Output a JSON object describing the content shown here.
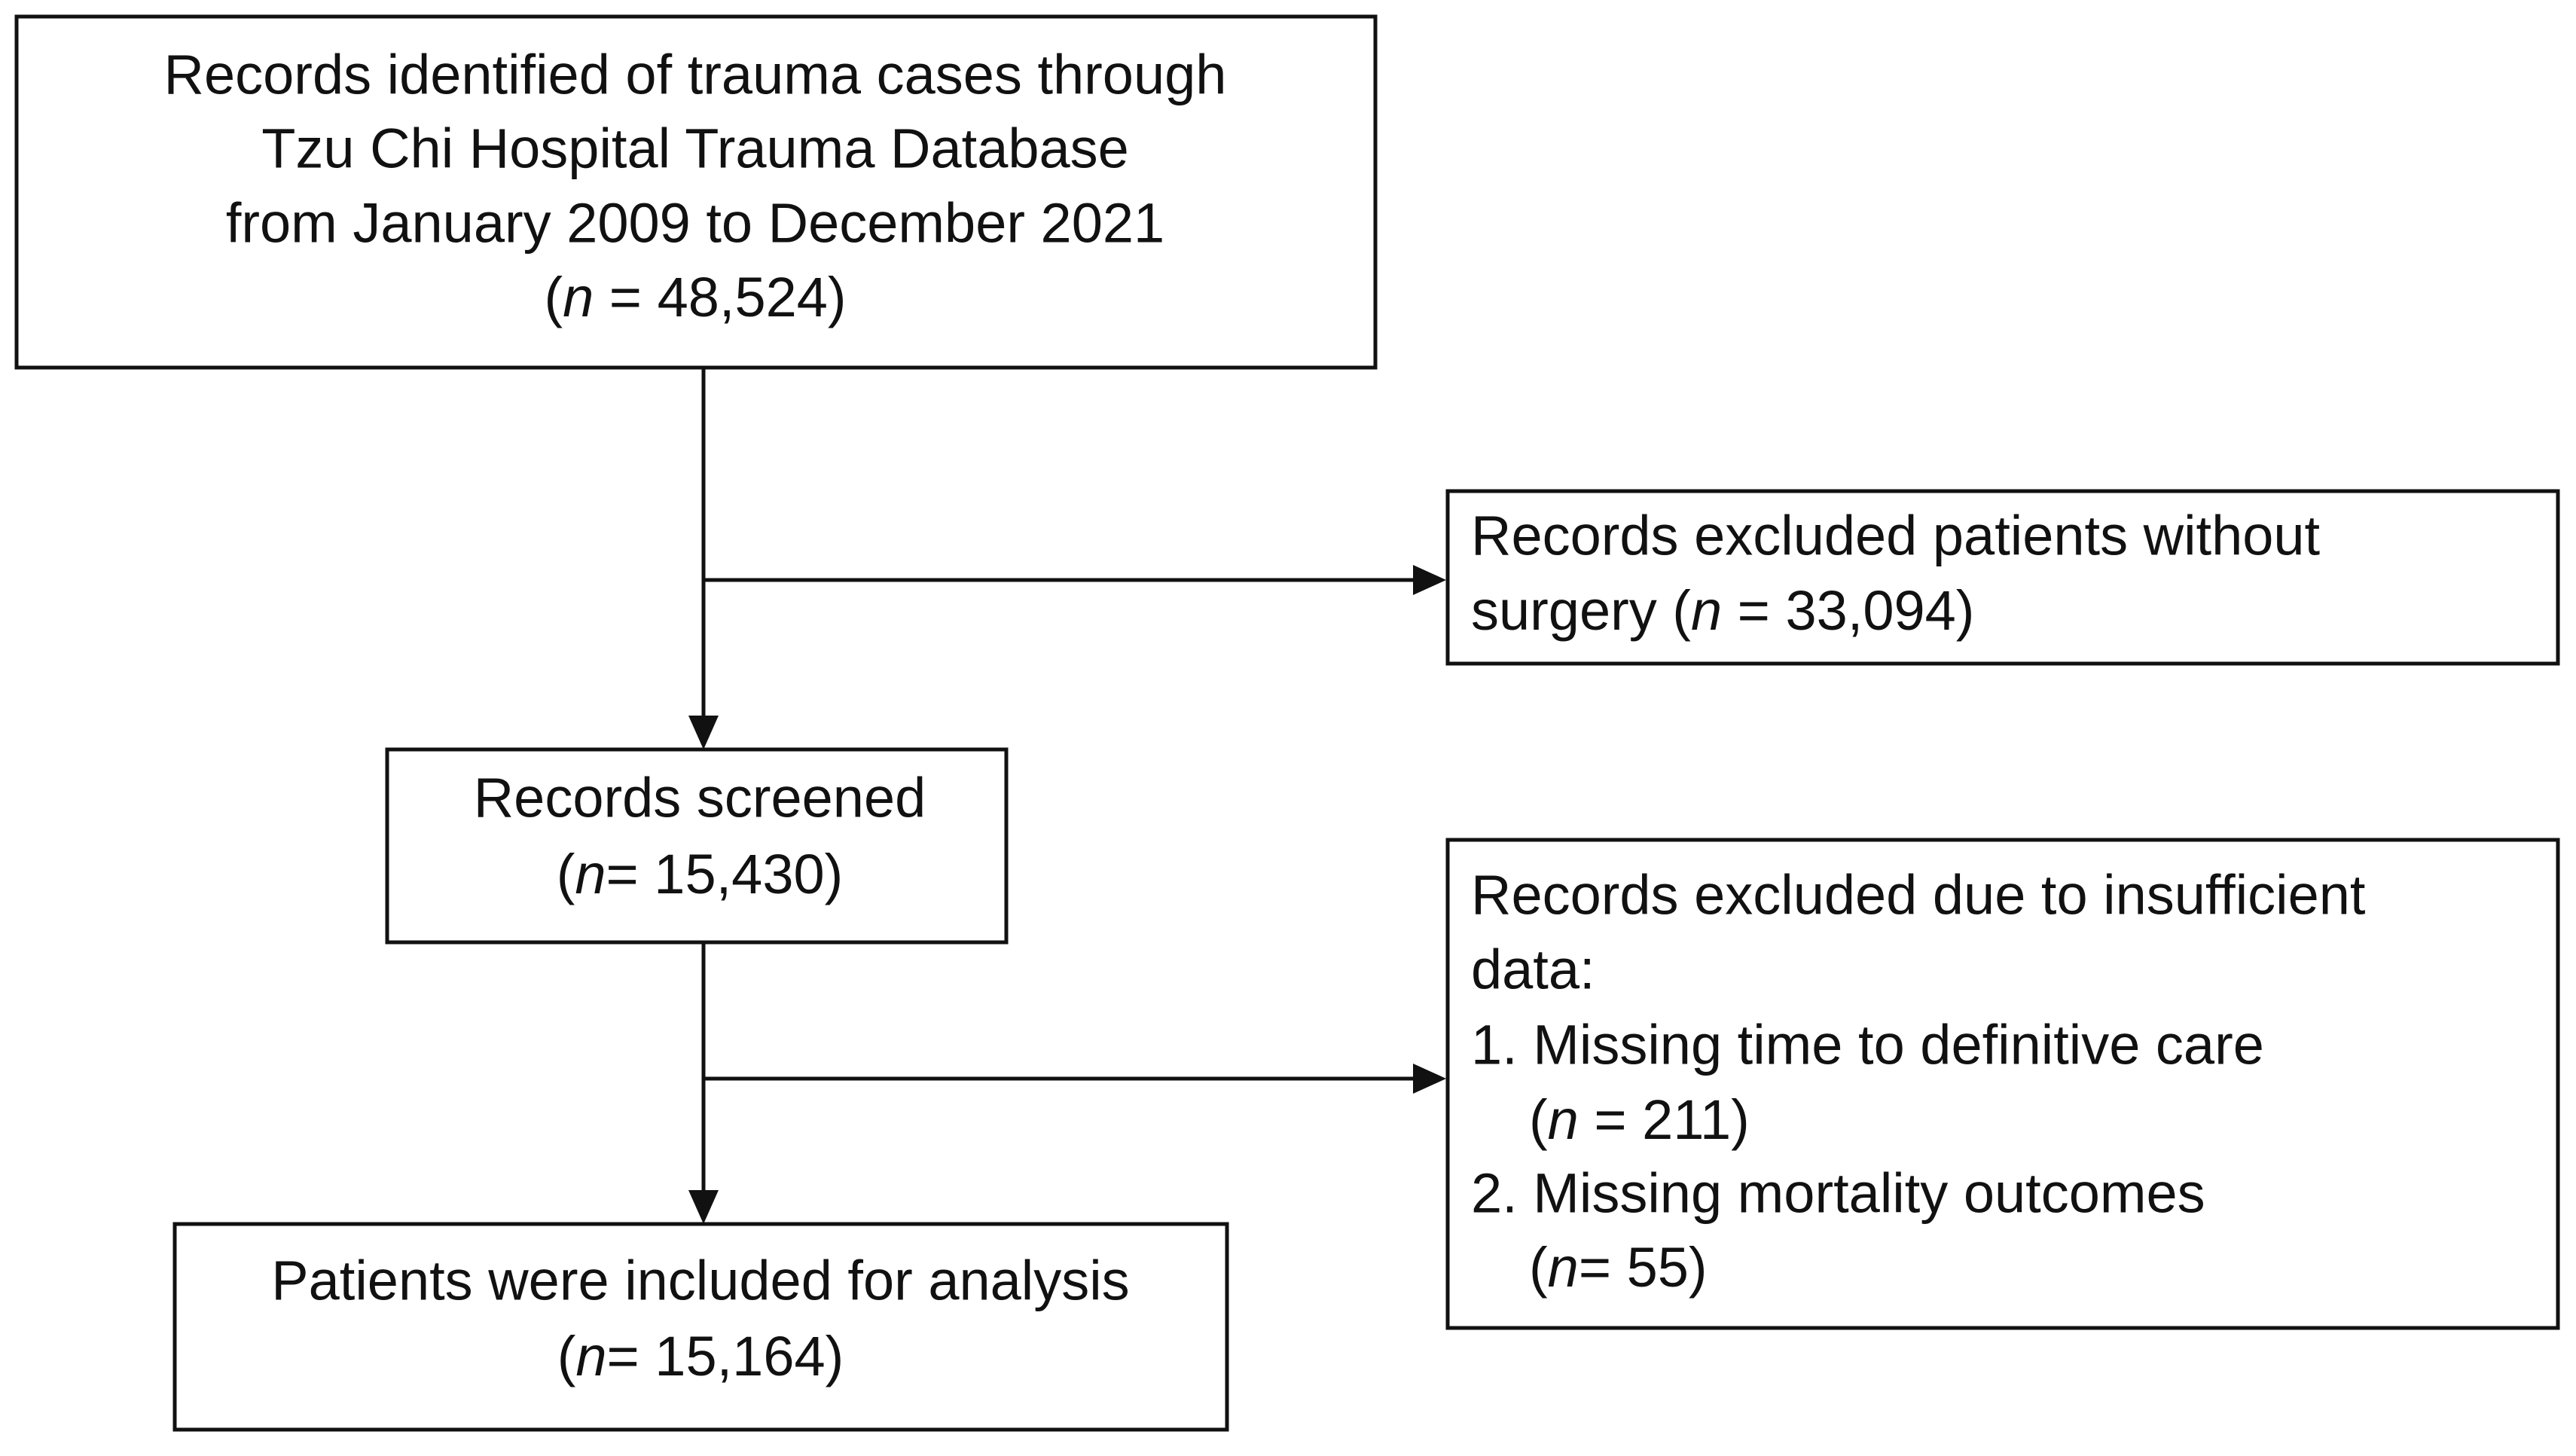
{
  "nodes": [
    {
      "lines": [
        "Records identified of trauma cases through",
        "Tzu Chi Hospital Trauma Database",
        "from January 2009 to December 2021",
        {
          "prefix": "(",
          "italic": "n",
          "suffix": " = 48,524)"
        }
      ]
    },
    {
      "lines": [
        "Records excluded patients without",
        {
          "prefix": "surgery (",
          "italic": "n",
          "suffix": " = 33,094)"
        }
      ]
    },
    {
      "lines": [
        "Records screened",
        {
          "prefix": "(",
          "italic": "n",
          "suffix": "= 15,430)"
        }
      ]
    },
    {
      "lines": [
        "Records excluded due to insufficient",
        "data:",
        "1. Missing time to definitive care",
        {
          "prefix": "(",
          "italic": "n",
          "suffix": " = 211)"
        },
        "2. Missing mortality outcomes",
        {
          "prefix": "(",
          "italic": "n",
          "suffix": "= 55)"
        }
      ]
    },
    {
      "lines": [
        "Patients were included for analysis",
        {
          "prefix": "(",
          "italic": "n",
          "suffix": "= 15,164)"
        }
      ]
    }
  ]
}
